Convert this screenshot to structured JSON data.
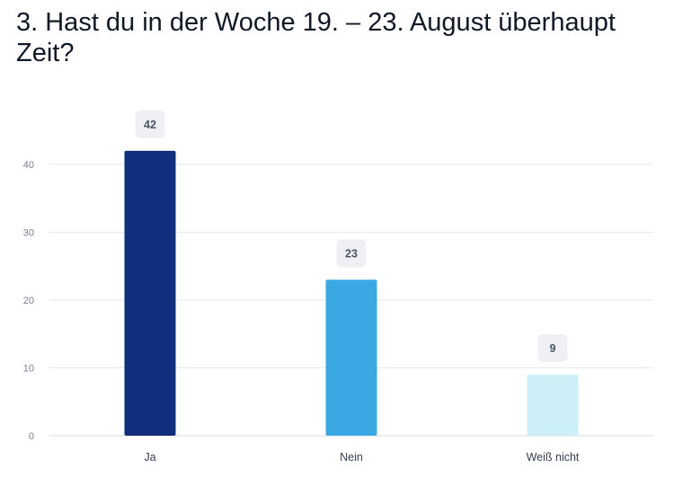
{
  "page": {
    "title": "3. Hast du in der Woche 19. – 23. August überhaupt Zeit?"
  },
  "chart_data": {
    "type": "bar",
    "title": "3. Hast du in der Woche 19. – 23. August überhaupt Zeit?",
    "categories": [
      "Ja",
      "Nein",
      "Weiß nicht"
    ],
    "values": [
      42,
      23,
      9
    ],
    "colors": [
      "#112e7d",
      "#3aa9e3",
      "#cdeff8"
    ],
    "yticks": [
      0,
      10,
      20,
      30,
      40
    ],
    "ylim": [
      0,
      44
    ],
    "grid": true,
    "legend": "none"
  }
}
